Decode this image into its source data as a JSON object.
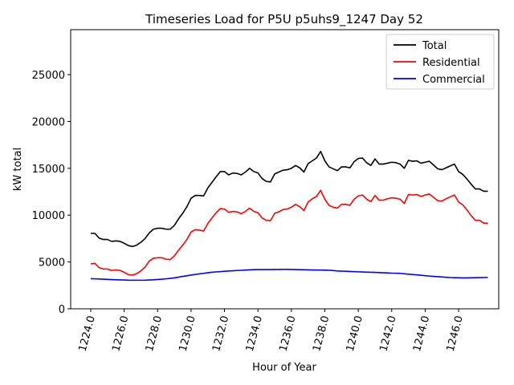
{
  "chart_data": {
    "type": "line",
    "title": "Timeseries Load for P5U p5uhs9_1247  Day 52",
    "xlabel": "Hour of Year",
    "ylabel": "kW total",
    "xlim": [
      1222.8,
      1248.4
    ],
    "ylim": [
      0,
      29800
    ],
    "xticks": [
      1224,
      1226,
      1228,
      1230,
      1232,
      1234,
      1236,
      1238,
      1240,
      1242,
      1244,
      1246
    ],
    "xtick_labels": [
      "1224.0",
      "1226.0",
      "1228.0",
      "1230.0",
      "1232.0",
      "1234.0",
      "1236.0",
      "1238.0",
      "1240.0",
      "1242.0",
      "1244.0",
      "1246.0"
    ],
    "yticks": [
      0,
      5000,
      10000,
      15000,
      20000,
      25000
    ],
    "ytick_labels": [
      "0",
      "5000",
      "10000",
      "15000",
      "20000",
      "25000"
    ],
    "legend_position": "top-right",
    "x_start": 1224,
    "x_step": 0.25,
    "series": [
      {
        "name": "Total",
        "color": "#000000",
        "values": [
          8050,
          8050,
          7550,
          7400,
          7400,
          7200,
          7250,
          7200,
          7000,
          6750,
          6650,
          6800,
          7100,
          7500,
          8100,
          8500,
          8600,
          8600,
          8500,
          8500,
          8900,
          9600,
          10200,
          10900,
          11800,
          12100,
          12100,
          12050,
          12900,
          13500,
          14100,
          14650,
          14650,
          14300,
          14500,
          14450,
          14300,
          14600,
          15000,
          14650,
          14500,
          13900,
          13600,
          13550,
          14400,
          14600,
          14800,
          14850,
          15000,
          15300,
          15050,
          14600,
          15500,
          15800,
          16100,
          16800,
          15800,
          15150,
          14950,
          14750,
          15150,
          15150,
          15050,
          15700,
          16050,
          16100,
          15600,
          15300,
          16000,
          15450,
          15450,
          15550,
          15650,
          15600,
          15450,
          15000,
          15850,
          15750,
          15800,
          15550,
          15650,
          15750,
          15350,
          14950,
          14850,
          15050,
          15250,
          15450,
          14650,
          14350,
          13850,
          13300,
          12800,
          12800,
          12550,
          12550
        ]
      },
      {
        "name": "Residential",
        "color": "#ff0000",
        "values": [
          4800,
          4850,
          4400,
          4250,
          4250,
          4100,
          4150,
          4100,
          3900,
          3650,
          3600,
          3750,
          4050,
          4450,
          5100,
          5400,
          5450,
          5450,
          5300,
          5250,
          5650,
          6250,
          6800,
          7400,
          8200,
          8450,
          8400,
          8300,
          9100,
          9700,
          10250,
          10700,
          10650,
          10300,
          10400,
          10350,
          10150,
          10400,
          10750,
          10400,
          10250,
          9700,
          9450,
          9400,
          10200,
          10350,
          10600,
          10650,
          10850,
          11150,
          10900,
          10500,
          11400,
          11750,
          12000,
          12650,
          11700,
          11050,
          10850,
          10750,
          11150,
          11150,
          11050,
          11700,
          12050,
          12150,
          11700,
          11450,
          12100,
          11600,
          11600,
          11750,
          11850,
          11800,
          11700,
          11250,
          12200,
          12150,
          12200,
          12000,
          12150,
          12250,
          11900,
          11550,
          11500,
          11750,
          11950,
          12150,
          11400,
          11100,
          10550,
          9950,
          9450,
          9450,
          9150,
          9150
        ]
      },
      {
        "name": "Commercial",
        "color": "#0000ff",
        "values": [
          3220,
          3200,
          3180,
          3160,
          3140,
          3120,
          3100,
          3090,
          3080,
          3060,
          3050,
          3050,
          3050,
          3060,
          3080,
          3100,
          3130,
          3160,
          3200,
          3250,
          3300,
          3380,
          3460,
          3530,
          3600,
          3670,
          3730,
          3790,
          3850,
          3900,
          3940,
          3970,
          4010,
          4040,
          4060,
          4090,
          4110,
          4140,
          4160,
          4180,
          4190,
          4190,
          4190,
          4190,
          4200,
          4200,
          4210,
          4210,
          4200,
          4190,
          4180,
          4170,
          4160,
          4150,
          4140,
          4140,
          4130,
          4120,
          4080,
          4040,
          4020,
          4010,
          3990,
          3970,
          3950,
          3930,
          3910,
          3900,
          3890,
          3870,
          3850,
          3830,
          3810,
          3800,
          3780,
          3740,
          3700,
          3660,
          3620,
          3580,
          3540,
          3500,
          3460,
          3430,
          3400,
          3370,
          3340,
          3320,
          3310,
          3300,
          3300,
          3310,
          3320,
          3330,
          3340,
          3350
        ]
      }
    ]
  }
}
